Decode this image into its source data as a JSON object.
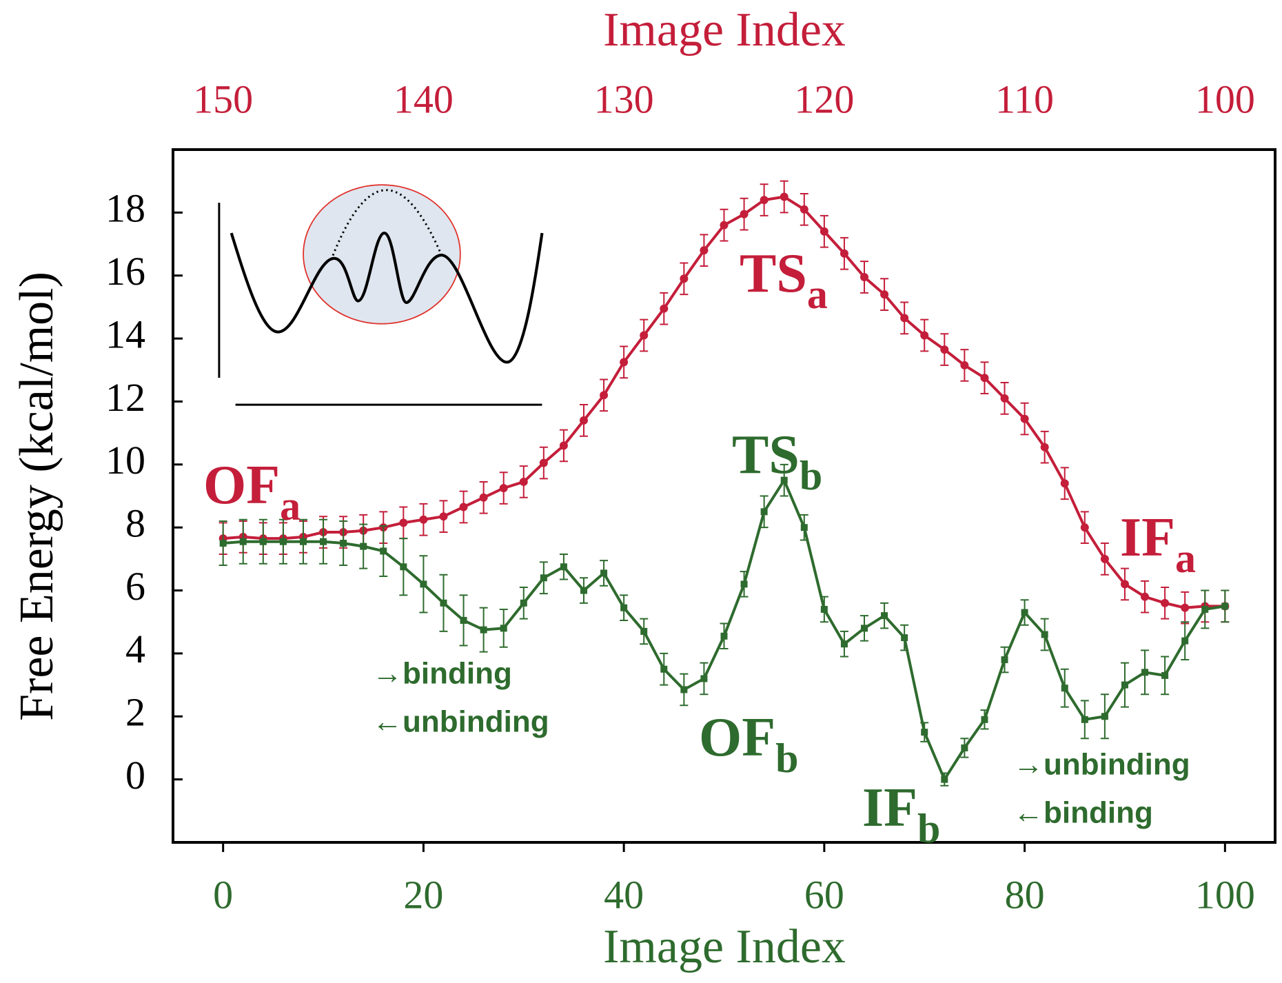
{
  "chart_data": {
    "type": "line",
    "x_label": "Image Index",
    "x2_label": "Image Index",
    "y_label": "Free Energy (kcal/mol)",
    "xlim": [
      -5,
      105
    ],
    "xticks": [
      0,
      20,
      40,
      60,
      80,
      100
    ],
    "x2lim": [
      152.5,
      97.5
    ],
    "x2ticks": [
      150,
      140,
      130,
      120,
      110,
      100
    ],
    "ylim": [
      -2,
      20
    ],
    "yticks": [
      0,
      2,
      4,
      6,
      8,
      10,
      12,
      14,
      16,
      18
    ],
    "x": [
      0,
      2,
      4,
      6,
      8,
      10,
      12,
      14,
      16,
      18,
      20,
      22,
      24,
      26,
      28,
      30,
      32,
      34,
      36,
      38,
      40,
      42,
      44,
      46,
      48,
      50,
      52,
      54,
      56,
      58,
      60,
      62,
      64,
      66,
      68,
      70,
      72,
      74,
      76,
      78,
      80,
      82,
      84,
      86,
      88,
      90,
      92,
      94,
      96,
      98,
      100
    ],
    "series": [
      {
        "color": "#c41e3a",
        "marker": "circle",
        "axis": "x2",
        "values": [
          7.65,
          7.7,
          7.65,
          7.65,
          7.7,
          7.85,
          7.85,
          7.9,
          8.0,
          8.15,
          8.25,
          8.35,
          8.65,
          8.95,
          9.25,
          9.45,
          10.05,
          10.6,
          11.4,
          12.2,
          13.25,
          14.1,
          14.95,
          15.9,
          16.8,
          17.6,
          17.95,
          18.4,
          18.5,
          18.1,
          17.4,
          16.7,
          15.95,
          15.4,
          14.65,
          14.1,
          13.65,
          13.15,
          12.75,
          12.1,
          11.45,
          10.55,
          9.4,
          8.0,
          7.0,
          6.2,
          5.8,
          5.6,
          5.45,
          5.5,
          5.5
        ],
        "errors": [
          0.5,
          0.5,
          0.5,
          0.5,
          0.5,
          0.5,
          0.5,
          0.5,
          0.5,
          0.5,
          0.5,
          0.5,
          0.5,
          0.5,
          0.5,
          0.5,
          0.5,
          0.5,
          0.5,
          0.5,
          0.5,
          0.5,
          0.5,
          0.5,
          0.5,
          0.5,
          0.5,
          0.5,
          0.5,
          0.5,
          0.5,
          0.5,
          0.5,
          0.5,
          0.5,
          0.5,
          0.5,
          0.5,
          0.5,
          0.5,
          0.5,
          0.5,
          0.5,
          0.5,
          0.5,
          0.5,
          0.5,
          0.5,
          0.5,
          0.5,
          0.5
        ]
      },
      {
        "color": "#2e6b2e",
        "marker": "square",
        "values": [
          7.5,
          7.55,
          7.55,
          7.55,
          7.55,
          7.55,
          7.5,
          7.4,
          7.25,
          6.75,
          6.2,
          5.6,
          5.05,
          4.75,
          4.8,
          5.6,
          6.4,
          6.75,
          6.0,
          6.55,
          5.45,
          4.7,
          3.5,
          2.85,
          3.2,
          4.55,
          6.2,
          8.5,
          9.5,
          8.0,
          5.4,
          4.3,
          4.8,
          5.2,
          4.5,
          1.5,
          0.0,
          1.0,
          1.9,
          3.8,
          5.3,
          4.6,
          2.9,
          1.9,
          2.0,
          3.0,
          3.4,
          3.3,
          4.4,
          5.4,
          5.5
        ],
        "errors": [
          0.7,
          0.7,
          0.7,
          0.7,
          0.7,
          0.7,
          0.7,
          0.7,
          0.8,
          0.9,
          0.9,
          0.9,
          0.8,
          0.7,
          0.6,
          0.5,
          0.5,
          0.4,
          0.4,
          0.4,
          0.4,
          0.4,
          0.5,
          0.5,
          0.5,
          0.4,
          0.4,
          0.5,
          0.5,
          0.4,
          0.4,
          0.4,
          0.4,
          0.4,
          0.4,
          0.3,
          0.2,
          0.3,
          0.3,
          0.4,
          0.4,
          0.5,
          0.6,
          0.6,
          0.7,
          0.7,
          0.7,
          0.6,
          0.6,
          0.6,
          0.5
        ]
      }
    ],
    "annotations": [
      {
        "text": "OF",
        "sub": "a",
        "color": "#c41e3a"
      },
      {
        "text": "TS",
        "sub": "a",
        "color": "#c41e3a"
      },
      {
        "text": "IF",
        "sub": "a",
        "color": "#c41e3a"
      },
      {
        "text": "TS",
        "sub": "b",
        "color": "#2e6b2e"
      },
      {
        "text": "OF",
        "sub": "b",
        "color": "#2e6b2e"
      },
      {
        "text": "IF",
        "sub": "b",
        "color": "#2e6b2e"
      }
    ],
    "notes": [
      "→binding",
      "←unbinding",
      "→unbinding",
      "←binding"
    ]
  }
}
